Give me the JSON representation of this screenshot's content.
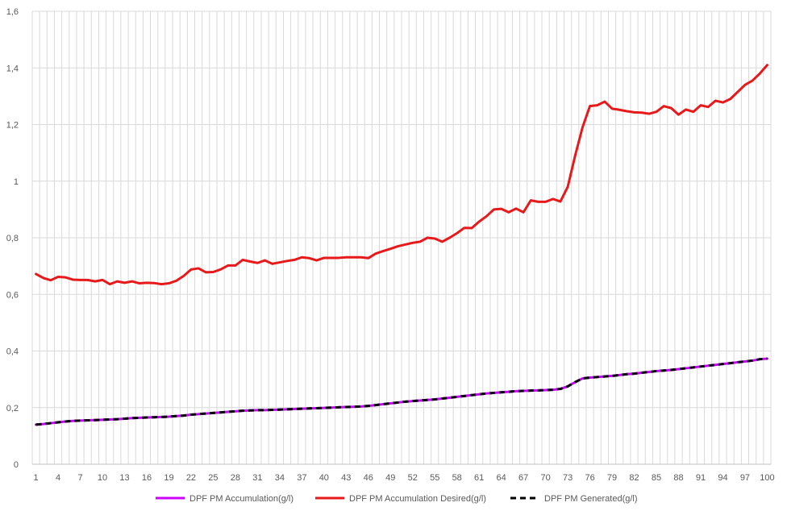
{
  "chart_data": {
    "type": "line",
    "xlabel": "",
    "ylabel": "",
    "ylim": [
      0,
      1.6
    ],
    "yticks": [
      0,
      0.2,
      0.4,
      0.6,
      0.8,
      1,
      1.2,
      1.4,
      1.6
    ],
    "ytick_labels": [
      "0",
      "0,2",
      "0,4",
      "0,6",
      "0,8",
      "1",
      "1,2",
      "1,4",
      "1,6"
    ],
    "x_range": [
      1,
      100
    ],
    "xtick_labels": [
      "1",
      "4",
      "7",
      "10",
      "13",
      "16",
      "19",
      "22",
      "25",
      "28",
      "31",
      "34",
      "37",
      "40",
      "43",
      "46",
      "49",
      "52",
      "55",
      "58",
      "61",
      "64",
      "67",
      "70",
      "73",
      "76",
      "79",
      "82",
      "85",
      "88",
      "91",
      "94",
      "97",
      "100"
    ],
    "grid": "vertical and horizontal",
    "legend_position": "bottom",
    "series": [
      {
        "name": "DPF PM Accumulation(g/l)",
        "color": "#cc00ff",
        "style": "solid",
        "values": [
          0.14,
          0.142,
          0.145,
          0.148,
          0.151,
          0.153,
          0.154,
          0.155,
          0.156,
          0.157,
          0.158,
          0.159,
          0.161,
          0.163,
          0.164,
          0.165,
          0.166,
          0.167,
          0.168,
          0.17,
          0.172,
          0.175,
          0.177,
          0.179,
          0.181,
          0.183,
          0.185,
          0.187,
          0.189,
          0.19,
          0.191,
          0.191,
          0.192,
          0.193,
          0.194,
          0.195,
          0.196,
          0.197,
          0.198,
          0.199,
          0.2,
          0.201,
          0.202,
          0.203,
          0.204,
          0.206,
          0.209,
          0.212,
          0.215,
          0.218,
          0.221,
          0.223,
          0.225,
          0.227,
          0.229,
          0.232,
          0.235,
          0.238,
          0.241,
          0.244,
          0.247,
          0.25,
          0.252,
          0.254,
          0.256,
          0.258,
          0.259,
          0.26,
          0.261,
          0.262,
          0.263,
          0.266,
          0.275,
          0.29,
          0.303,
          0.306,
          0.308,
          0.31,
          0.312,
          0.315,
          0.318,
          0.32,
          0.323,
          0.326,
          0.329,
          0.331,
          0.333,
          0.336,
          0.339,
          0.342,
          0.345,
          0.348,
          0.351,
          0.354,
          0.357,
          0.36,
          0.363,
          0.366,
          0.371,
          0.373
        ]
      },
      {
        "name": "DPF PM Accumulation Desired(g/l)",
        "color": "#e8191a",
        "style": "solid",
        "values": [
          0.672,
          0.658,
          0.65,
          0.662,
          0.66,
          0.652,
          0.651,
          0.651,
          0.646,
          0.651,
          0.636,
          0.646,
          0.641,
          0.646,
          0.639,
          0.641,
          0.64,
          0.636,
          0.639,
          0.648,
          0.665,
          0.688,
          0.692,
          0.678,
          0.679,
          0.688,
          0.702,
          0.702,
          0.722,
          0.716,
          0.711,
          0.72,
          0.708,
          0.713,
          0.718,
          0.722,
          0.731,
          0.728,
          0.72,
          0.729,
          0.729,
          0.729,
          0.731,
          0.731,
          0.731,
          0.728,
          0.744,
          0.753,
          0.761,
          0.77,
          0.776,
          0.782,
          0.786,
          0.8,
          0.797,
          0.786,
          0.8,
          0.816,
          0.835,
          0.834,
          0.857,
          0.876,
          0.9,
          0.902,
          0.89,
          0.903,
          0.89,
          0.932,
          0.927,
          0.927,
          0.937,
          0.928,
          0.98,
          1.09,
          1.19,
          1.265,
          1.268,
          1.281,
          1.256,
          1.252,
          1.247,
          1.243,
          1.242,
          1.238,
          1.245,
          1.265,
          1.258,
          1.235,
          1.253,
          1.245,
          1.268,
          1.262,
          1.284,
          1.278,
          1.29,
          1.315,
          1.34,
          1.355,
          1.38,
          1.41
        ]
      },
      {
        "name": "DPF PM Generated(g/l)",
        "color": "#000000",
        "style": "dashed",
        "values": [
          0.14,
          0.142,
          0.145,
          0.148,
          0.151,
          0.153,
          0.154,
          0.155,
          0.156,
          0.157,
          0.158,
          0.159,
          0.161,
          0.163,
          0.164,
          0.165,
          0.166,
          0.167,
          0.168,
          0.17,
          0.172,
          0.175,
          0.177,
          0.179,
          0.181,
          0.183,
          0.185,
          0.187,
          0.189,
          0.19,
          0.191,
          0.191,
          0.192,
          0.193,
          0.194,
          0.195,
          0.196,
          0.197,
          0.198,
          0.199,
          0.2,
          0.201,
          0.202,
          0.203,
          0.204,
          0.206,
          0.209,
          0.212,
          0.215,
          0.218,
          0.221,
          0.223,
          0.225,
          0.227,
          0.229,
          0.232,
          0.235,
          0.238,
          0.241,
          0.244,
          0.247,
          0.25,
          0.252,
          0.254,
          0.256,
          0.258,
          0.259,
          0.26,
          0.261,
          0.262,
          0.263,
          0.266,
          0.275,
          0.29,
          0.303,
          0.306,
          0.308,
          0.31,
          0.312,
          0.315,
          0.318,
          0.32,
          0.323,
          0.326,
          0.329,
          0.331,
          0.333,
          0.336,
          0.339,
          0.342,
          0.345,
          0.348,
          0.351,
          0.354,
          0.357,
          0.36,
          0.363,
          0.366,
          0.371,
          0.373
        ]
      }
    ]
  }
}
